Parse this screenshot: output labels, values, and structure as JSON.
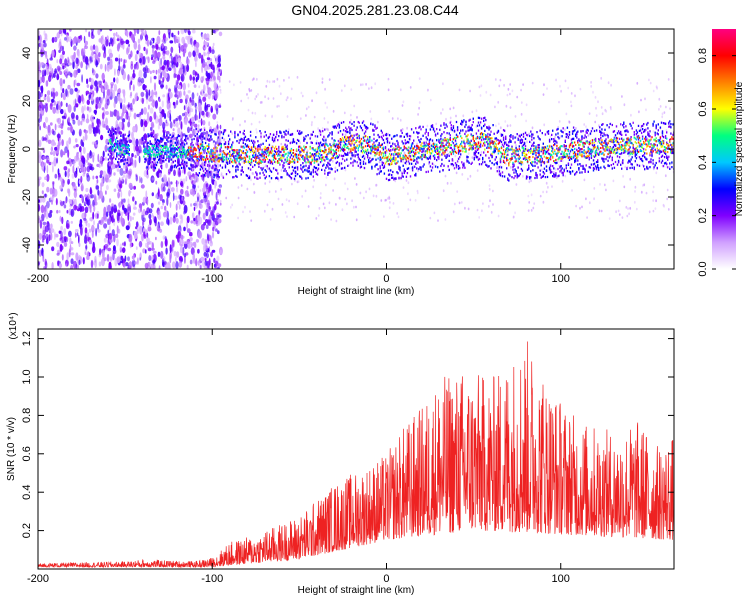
{
  "title": "GN04.2025.281.23.08.C44",
  "chart_data": [
    {
      "type": "heatmap",
      "name": "spectrogram",
      "title": "GN04.2025.281.23.08.C44",
      "xlabel": "Height of straight line (km)",
      "ylabel": "Frequency (Hz)",
      "xlim": [
        -200,
        165
      ],
      "ylim": [
        -50,
        50
      ],
      "xticks": [
        "-200",
        "-100",
        "0",
        "100"
      ],
      "yticks": [
        "40",
        "20",
        "0",
        "-20",
        "-40"
      ],
      "colorbar": {
        "label": "Normalized spectral amplitude",
        "range": [
          0.0,
          0.9
        ],
        "ticks": [
          "0.0",
          "0.2",
          "0.4",
          "0.6",
          "0.8"
        ],
        "colors": [
          "#ffffff",
          "#d0a0ff",
          "#8000ff",
          "#0000ff",
          "#00c8ff",
          "#00ff80",
          "#ffff00",
          "#ff8000",
          "#ff0000",
          "#ff0080"
        ]
      },
      "band_center_hz": [
        {
          "x": -155,
          "y": 0
        },
        {
          "x": -110,
          "y": -1
        },
        {
          "x": -80,
          "y": -2
        },
        {
          "x": -40,
          "y": -2
        },
        {
          "x": -20,
          "y": 3
        },
        {
          "x": -10,
          "y": 2
        },
        {
          "x": 0,
          "y": -3
        },
        {
          "x": 20,
          "y": 0
        },
        {
          "x": 40,
          "y": 2
        },
        {
          "x": 55,
          "y": 4
        },
        {
          "x": 70,
          "y": -3
        },
        {
          "x": 100,
          "y": -1
        },
        {
          "x": 120,
          "y": 1
        },
        {
          "x": 150,
          "y": 2
        },
        {
          "x": 165,
          "y": 2
        }
      ]
    },
    {
      "type": "line",
      "name": "snr",
      "xlabel": "Height of straight line (km)",
      "ylabel": "SNR (10 * v/v)",
      "y_multiplier": "(x10⁴)",
      "xlim": [
        -200,
        165
      ],
      "ylim": [
        0,
        1.25
      ],
      "xticks": [
        "-200",
        "-100",
        "0",
        "100"
      ],
      "yticks": [
        "1.2",
        "1.0",
        "0.8",
        "0.6",
        "0.4",
        "0.2"
      ],
      "color": "#ee2222",
      "envelope": [
        {
          "x": -200,
          "y": 0.03
        },
        {
          "x": -150,
          "y": 0.04
        },
        {
          "x": -140,
          "y": 0.05
        },
        {
          "x": -110,
          "y": 0.04
        },
        {
          "x": -100,
          "y": 0.06
        },
        {
          "x": -90,
          "y": 0.14
        },
        {
          "x": -75,
          "y": 0.18
        },
        {
          "x": -50,
          "y": 0.28
        },
        {
          "x": -30,
          "y": 0.45
        },
        {
          "x": -10,
          "y": 0.55
        },
        {
          "x": 0,
          "y": 0.6
        },
        {
          "x": 10,
          "y": 0.75
        },
        {
          "x": 20,
          "y": 0.85
        },
        {
          "x": 30,
          "y": 1.0
        },
        {
          "x": 45,
          "y": 1.05
        },
        {
          "x": 60,
          "y": 1.0
        },
        {
          "x": 80,
          "y": 1.22
        },
        {
          "x": 95,
          "y": 0.95
        },
        {
          "x": 110,
          "y": 0.78
        },
        {
          "x": 130,
          "y": 0.72
        },
        {
          "x": 145,
          "y": 0.78
        },
        {
          "x": 155,
          "y": 0.65
        },
        {
          "x": 165,
          "y": 0.7
        }
      ],
      "baseline": [
        {
          "x": -200,
          "y": 0.01
        },
        {
          "x": -100,
          "y": 0.01
        },
        {
          "x": -50,
          "y": 0.05
        },
        {
          "x": 0,
          "y": 0.15
        },
        {
          "x": 50,
          "y": 0.2
        },
        {
          "x": 100,
          "y": 0.18
        },
        {
          "x": 165,
          "y": 0.15
        }
      ]
    }
  ]
}
